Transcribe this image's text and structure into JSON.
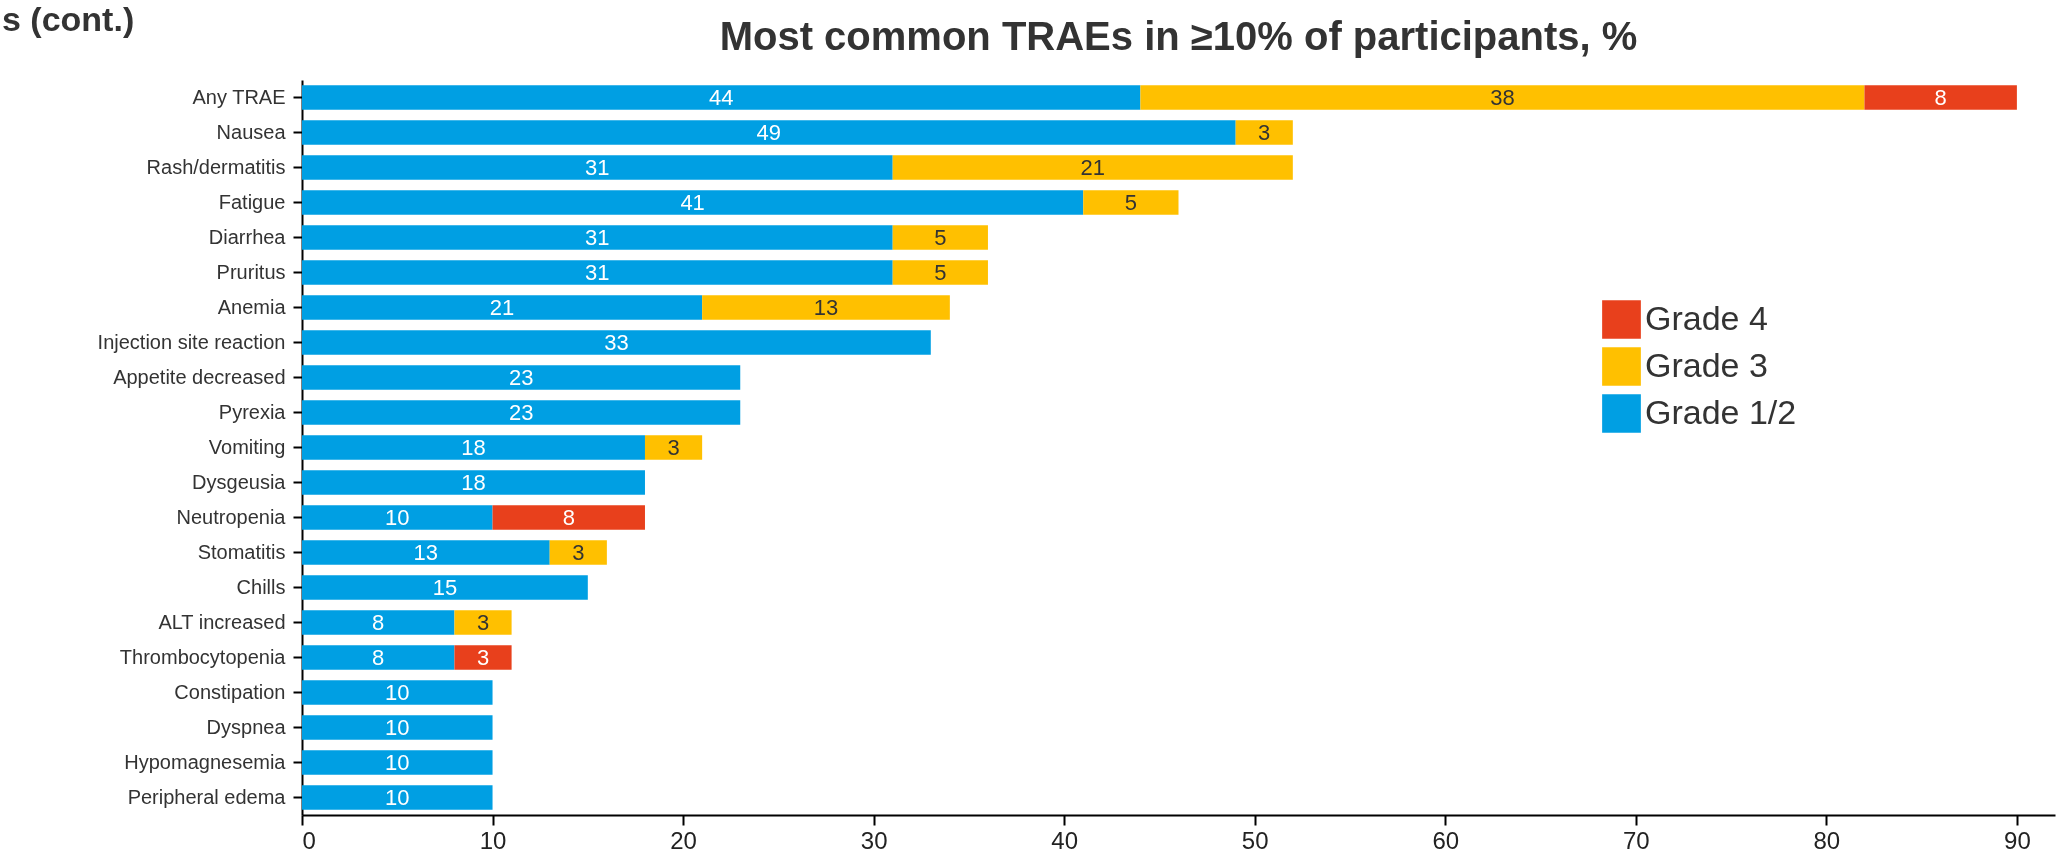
{
  "chart_data": {
    "type": "bar",
    "orientation": "horizontal",
    "stacked": true,
    "title": "Most common TRAEs in ≥10% of participants, %",
    "annotations": [
      "s (cont.)"
    ],
    "categories": [
      "Any TRAE",
      "Nausea",
      "Rash/dermatitis",
      "Fatigue",
      "Diarrhea",
      "Pruritus",
      "Anemia",
      "Injection site reaction",
      "Appetite decreased",
      "Pyrexia",
      "Vomiting",
      "Dysgeusia",
      "Neutropenia",
      "Stomatitis",
      "Chills",
      "ALT increased",
      "Thrombocytopenia",
      "Constipation",
      "Dyspnea",
      "Hypomagnesemia",
      "Peripheral edema"
    ],
    "series": [
      {
        "name": "Grade 1/2",
        "color": "#009fe3",
        "values": [
          44,
          49,
          31,
          41,
          31,
          31,
          21,
          33,
          23,
          23,
          18,
          18,
          10,
          13,
          15,
          8,
          8,
          10,
          10,
          10,
          10
        ]
      },
      {
        "name": "Grade 3",
        "color": "#ffc000",
        "values": [
          38,
          3,
          21,
          5,
          5,
          5,
          13,
          null,
          null,
          null,
          3,
          null,
          null,
          3,
          null,
          3,
          null,
          null,
          null,
          null,
          null
        ]
      },
      {
        "name": "Grade 4",
        "color": "#e8401c",
        "values": [
          8,
          null,
          null,
          null,
          null,
          null,
          null,
          null,
          null,
          null,
          null,
          null,
          8,
          null,
          null,
          null,
          3,
          null,
          null,
          null,
          null
        ]
      }
    ],
    "xlim": [
      0,
      92
    ],
    "xticks": [
      0,
      10,
      20,
      30,
      40,
      50,
      60,
      70,
      80,
      90
    ],
    "data_labels": true,
    "grid": false,
    "legend": "right"
  }
}
